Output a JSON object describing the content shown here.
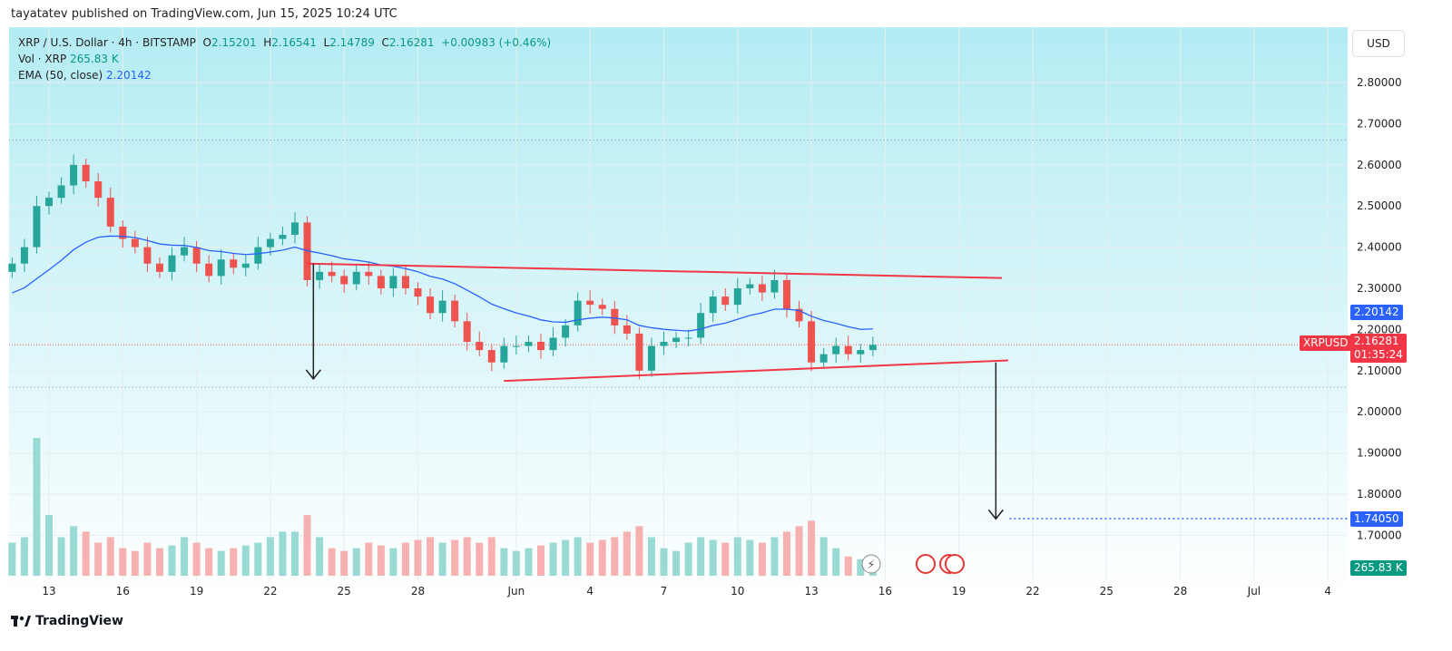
{
  "header": {
    "published": "tayatatev published on TradingView.com, Jun 15, 2025 10:24 UTC"
  },
  "legend": {
    "symbol": "XRP / U.S. Dollar · 4h · BITSTAMP",
    "open_label": "O",
    "open": "2.15201",
    "high_label": "H",
    "high": "2.16541",
    "low_label": "L",
    "low": "2.14789",
    "close_label": "C",
    "close": "2.16281",
    "change": "+0.00983 (+0.46%)",
    "vol_label": "Vol · XRP",
    "vol_value": "265.83 K",
    "ema_label": "EMA (50, close)",
    "ema_value": "2.20142"
  },
  "currency_button": "USD",
  "price_labels": {
    "ema": "2.20142",
    "symbol": "XRPUSD",
    "last": "2.16281",
    "countdown": "01:35:24",
    "target": "1.74050",
    "volume": "265.83 K"
  },
  "brand": "TradingView",
  "colors": {
    "up": "#26a69a",
    "down": "#ef5350",
    "ema": "#2962ff",
    "trendline": "#f23645",
    "target": "#2962ff"
  },
  "chart_data": {
    "type": "candlestick",
    "title": "XRP / U.S. Dollar · 4h · BITSTAMP",
    "y_ticks": [
      "2.80000",
      "2.70000",
      "2.60000",
      "2.50000",
      "2.40000",
      "2.30000",
      "2.20000",
      "2.10000",
      "2.00000",
      "1.90000",
      "1.80000",
      "1.70000"
    ],
    "ylim": [
      1.65,
      2.88
    ],
    "x_ticks": [
      "13",
      "16",
      "19",
      "22",
      "25",
      "28",
      "Jun",
      "4",
      "7",
      "10",
      "13",
      "16",
      "19",
      "22",
      "25",
      "28",
      "Jul",
      "4"
    ],
    "x_tick_dates": [
      "2025-05-13",
      "2025-05-16",
      "2025-05-19",
      "2025-05-22",
      "2025-05-25",
      "2025-05-28",
      "2025-06-01",
      "2025-06-04",
      "2025-06-07",
      "2025-06-10",
      "2025-06-13",
      "2025-06-16",
      "2025-06-19",
      "2025-06-22",
      "2025-06-25",
      "2025-06-28",
      "2025-07-01",
      "2025-07-04"
    ],
    "start": "2025-05-11T12:00:00Z",
    "closes": [
      2.36,
      2.4,
      2.5,
      2.52,
      2.55,
      2.6,
      2.56,
      2.52,
      2.45,
      2.42,
      2.4,
      2.36,
      2.34,
      2.38,
      2.4,
      2.36,
      2.33,
      2.37,
      2.35,
      2.36,
      2.4,
      2.42,
      2.43,
      2.46,
      2.32,
      2.34,
      2.33,
      2.31,
      2.34,
      2.33,
      2.3,
      2.33,
      2.3,
      2.28,
      2.24,
      2.27,
      2.22,
      2.17,
      2.15,
      2.12,
      2.16,
      2.16,
      2.17,
      2.15,
      2.18,
      2.21,
      2.27,
      2.26,
      2.25,
      2.21,
      2.19,
      2.1,
      2.16,
      2.17,
      2.18,
      2.18,
      2.24,
      2.28,
      2.26,
      2.3,
      2.31,
      2.29,
      2.32,
      2.25,
      2.22,
      2.12,
      2.14,
      2.16,
      2.14,
      2.15,
      2.16281
    ],
    "volumes_k": [
      600,
      700,
      2500,
      1100,
      700,
      900,
      800,
      600,
      700,
      500,
      450,
      600,
      500,
      550,
      700,
      600,
      500,
      450,
      500,
      550,
      600,
      700,
      800,
      800,
      1100,
      700,
      500,
      450,
      500,
      600,
      550,
      500,
      600,
      650,
      700,
      600,
      650,
      700,
      600,
      700,
      500,
      450,
      500,
      550,
      600,
      650,
      700,
      600,
      650,
      700,
      800,
      900,
      700,
      500,
      450,
      600,
      700,
      650,
      600,
      700,
      650,
      600,
      700,
      800,
      900,
      1000,
      700,
      500,
      350,
      300,
      265.83
    ],
    "ema_period": 50,
    "ema_last": 2.20142,
    "last_price": 2.16281,
    "horizontal_levels": [
      2.66,
      2.06
    ],
    "trendlines": [
      {
        "from": [
          "2025-05-23T12:00:00Z",
          2.36
        ],
        "to": [
          "2025-06-20T18:00:00Z",
          2.325
        ]
      },
      {
        "from": [
          "2025-05-31T12:00:00Z",
          2.075
        ],
        "to": [
          "2025-06-21T00:00:00Z",
          2.125
        ]
      }
    ],
    "arrows": [
      {
        "from": [
          "2025-05-23T18:00:00Z",
          2.36
        ],
        "to": [
          "2025-05-23T18:00:00Z",
          2.08
        ]
      },
      {
        "from": [
          "2025-06-20T12:00:00Z",
          2.12
        ],
        "to": [
          "2025-06-20T12:00:00Z",
          1.74
        ]
      }
    ],
    "target_level": 1.7405
  }
}
